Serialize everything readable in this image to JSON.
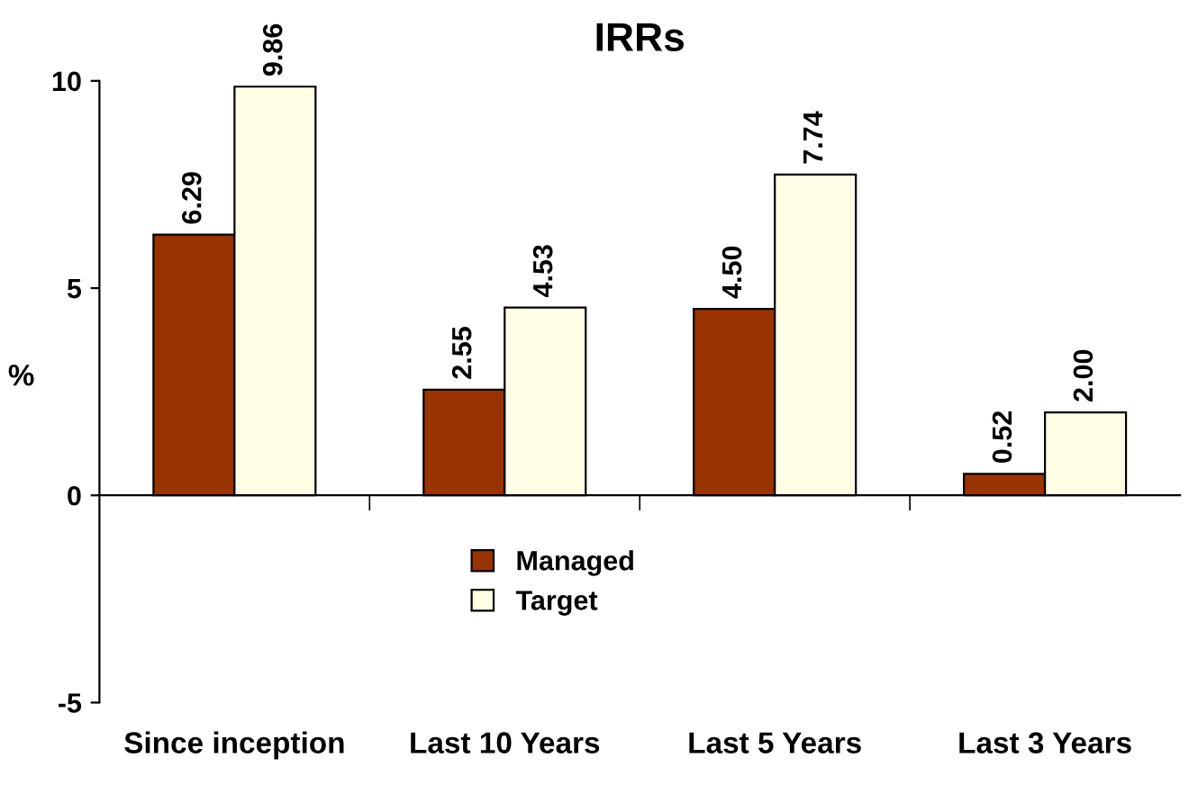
{
  "chart_data": {
    "type": "bar",
    "title": "IRRs",
    "ylabel": "%",
    "categories": [
      "Since inception",
      "Last 10 Years",
      "Last 5 Years",
      "Last 3 Years"
    ],
    "series": [
      {
        "name": "Managed",
        "color": "#993300",
        "values": [
          6.29,
          2.55,
          4.5,
          0.52
        ],
        "value_labels": [
          "6.29",
          "2.55",
          "4.50",
          "0.52"
        ]
      },
      {
        "name": "Target",
        "color": "#ffffe5",
        "values": [
          9.86,
          4.53,
          7.74,
          2.0
        ],
        "value_labels": [
          "9.86",
          "4.53",
          "7.74",
          "2.00"
        ]
      }
    ],
    "ylim": [
      -5,
      10
    ],
    "yticks": [
      -5,
      0,
      5,
      10
    ],
    "legend": "bottom"
  }
}
